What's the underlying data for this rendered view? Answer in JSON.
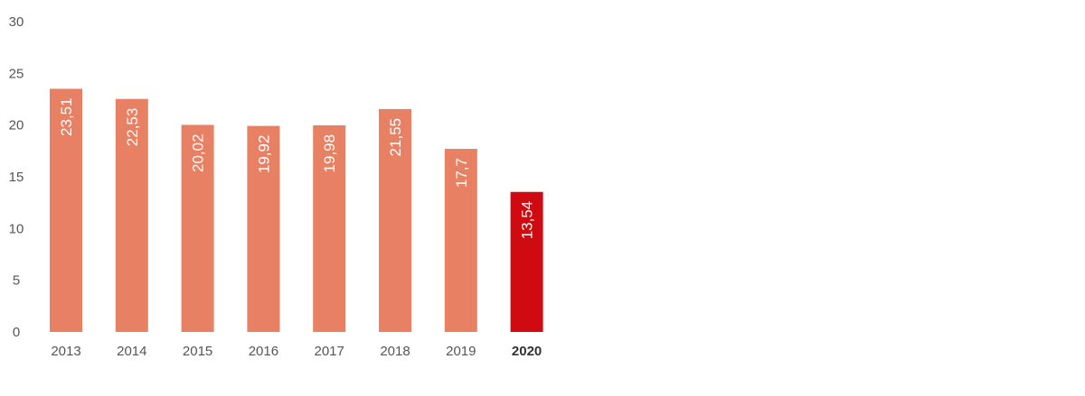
{
  "chart_data": {
    "type": "bar",
    "title": "",
    "xlabel": "",
    "ylabel": "",
    "categories": [
      "2013",
      "2014",
      "2015",
      "2016",
      "2017",
      "2018",
      "2019",
      "2020"
    ],
    "values": [
      23.51,
      22.53,
      20.02,
      19.92,
      19.98,
      21.55,
      17.7,
      13.54
    ],
    "value_labels": [
      "23,51",
      "22,53",
      "20,02",
      "19,92",
      "19,98",
      "21,55",
      "17,7",
      "13,54"
    ],
    "ylim": [
      0,
      30
    ],
    "yticks": [
      0,
      5,
      10,
      15,
      20,
      25,
      30
    ],
    "ytick_labels": [
      "0",
      "5",
      "10",
      "15",
      "20",
      "25",
      "30"
    ],
    "highlight_category": "2020",
    "grid": false,
    "colors": {
      "bar": "#e88063",
      "highlight": "#cf0a10"
    }
  }
}
